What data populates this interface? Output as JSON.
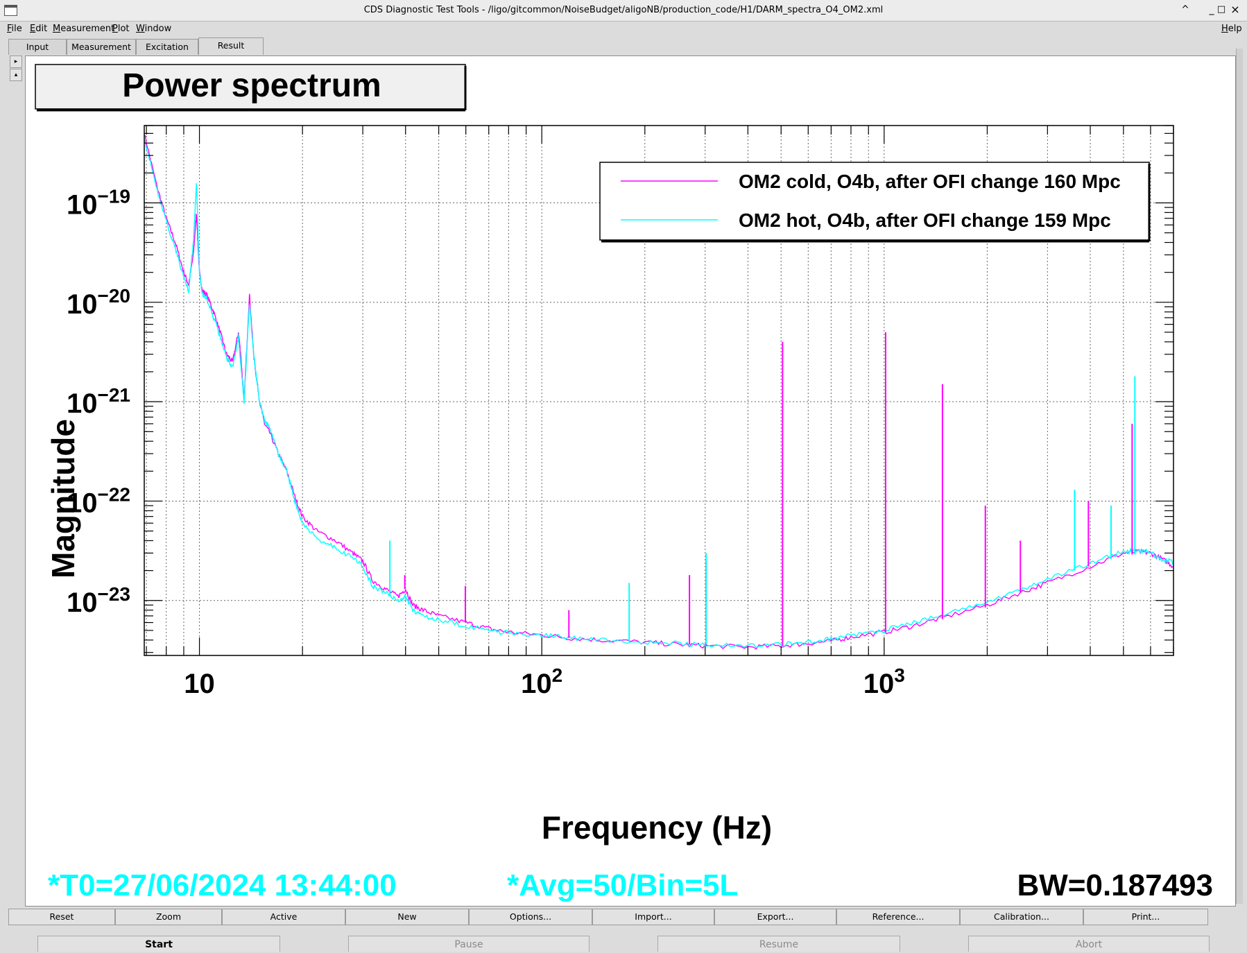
{
  "window": {
    "title": "CDS Diagnostic Test Tools - /ligo/gitcommon/NoiseBudget/aligoNB/production_code/H1/DARM_spectra_O4_OM2.xml",
    "controls": [
      "^",
      "_",
      "□",
      "×"
    ]
  },
  "menu": {
    "file": "File",
    "edit": "Edit",
    "measurement": "Measurement",
    "plot": "Plot",
    "window": "Window",
    "help": "Help"
  },
  "tabs": [
    "Input",
    "Measurement",
    "Excitation",
    "Result"
  ],
  "active_tab": "Result",
  "side_controls": [
    "▸",
    "▴"
  ],
  "plot": {
    "title": "Power spectrum",
    "footer_left": "*T0=27/06/2024 13:44:00",
    "footer_mid": "*Avg=50/Bin=5L",
    "footer_right": "BW=0.187493",
    "footer_color": "#00ffff"
  },
  "chart_data": {
    "type": "line",
    "xlabel": "Frequency (Hz)",
    "ylabel": "Magnitude",
    "xscale": "log",
    "yscale": "log",
    "xlim": [
      6.9,
      7000
    ],
    "ylim": [
      2.8e-24,
      6e-19
    ],
    "grid": true,
    "legend_position": "top-right",
    "x_ticks": [
      {
        "base": "10",
        "exp": ""
      },
      {
        "base": "10",
        "exp": "2"
      },
      {
        "base": "10",
        "exp": "3"
      }
    ],
    "y_ticks": [
      {
        "base": "10",
        "exp": "−19"
      },
      {
        "base": "10",
        "exp": "−20"
      },
      {
        "base": "10",
        "exp": "−21"
      },
      {
        "base": "10",
        "exp": "−22"
      },
      {
        "base": "10",
        "exp": "−23"
      }
    ],
    "x_tick_values": [
      10,
      100,
      1000
    ],
    "y_tick_values": [
      1e-19,
      1e-20,
      1e-21,
      1e-22,
      1e-23
    ],
    "series": [
      {
        "name": "OM2 cold, O4b, after OFI change 160 Mpc",
        "color": "#ff00ff",
        "x": [
          6.9,
          7.5,
          8,
          8.5,
          9,
          9.3,
          9.6,
          9.8,
          10,
          10.2,
          10.5,
          11,
          11.5,
          12,
          12.5,
          13,
          13.2,
          13.5,
          14,
          14.4,
          14.6,
          15,
          15.5,
          16,
          17,
          18,
          19,
          20,
          22,
          25,
          28,
          30,
          32,
          35,
          38,
          40,
          42,
          45,
          50,
          60,
          70,
          80,
          100,
          120,
          150,
          200,
          250,
          300,
          400,
          500,
          600,
          700,
          800,
          1000,
          1200,
          1500,
          2000,
          2500,
          3000,
          4000,
          5000,
          5600,
          6000,
          6500,
          7000
        ],
        "y": [
          5e-19,
          1.5e-19,
          7e-20,
          4e-20,
          2e-20,
          1.5e-20,
          3e-20,
          8e-20,
          2e-20,
          1.3e-20,
          1.2e-20,
          8e-21,
          5e-21,
          3e-21,
          2.5e-21,
          5e-21,
          3e-21,
          1e-21,
          1.2e-20,
          3e-21,
          2e-21,
          1e-21,
          6e-22,
          5e-22,
          3e-22,
          2e-22,
          1.1e-22,
          7e-23,
          5e-23,
          4e-23,
          3e-23,
          2.5e-23,
          1.6e-23,
          1.3e-23,
          1.1e-23,
          1.3e-23,
          9e-24,
          8e-24,
          7e-24,
          6e-24,
          5.2e-24,
          4.8e-24,
          4.5e-24,
          4.2e-24,
          4e-24,
          3.8e-24,
          3.6e-24,
          3.5e-24,
          3.4e-24,
          3.5e-24,
          3.7e-24,
          3.9e-24,
          4.3e-24,
          4.8e-24,
          5.5e-24,
          6.8e-24,
          9e-24,
          1.2e-23,
          1.5e-23,
          2.2e-23,
          3e-23,
          3.1e-23,
          3e-23,
          2.6e-23,
          2.2e-23
        ]
      },
      {
        "name": "OM2 hot, O4b, after OFI change 159 Mpc",
        "color": "#00ffff",
        "x": [
          6.9,
          7.5,
          8,
          8.5,
          9,
          9.3,
          9.6,
          9.8,
          10,
          10.2,
          10.5,
          11,
          11.5,
          12,
          12.5,
          13,
          13.2,
          13.5,
          14,
          14.4,
          14.6,
          15,
          15.5,
          16,
          17,
          18,
          19,
          20,
          22,
          25,
          28,
          30,
          32,
          35,
          38,
          40,
          42,
          45,
          50,
          60,
          70,
          80,
          100,
          120,
          150,
          200,
          250,
          300,
          400,
          500,
          600,
          700,
          800,
          1000,
          1200,
          1500,
          2000,
          2500,
          3000,
          4000,
          5000,
          5600,
          6000,
          6500,
          7000
        ],
        "y": [
          4.5e-19,
          1.4e-19,
          6.5e-20,
          3.5e-20,
          1.8e-20,
          1.3e-20,
          4e-20,
          1.6e-19,
          2e-20,
          1.2e-20,
          1.1e-20,
          7e-21,
          4.5e-21,
          2.8e-21,
          2.2e-21,
          4.5e-21,
          2.5e-21,
          1e-21,
          1e-20,
          3e-21,
          2e-21,
          1e-21,
          6.5e-22,
          5.5e-22,
          3e-22,
          2e-22,
          1e-22,
          6e-23,
          4.2e-23,
          3.4e-23,
          2.7e-23,
          2.2e-23,
          1.4e-23,
          1.2e-23,
          1e-23,
          1.1e-23,
          8e-24,
          7e-24,
          6.5e-24,
          5.5e-24,
          5e-24,
          4.7e-24,
          4.5e-24,
          4.2e-24,
          4e-24,
          3.8e-24,
          3.7e-24,
          3.6e-24,
          3.5e-24,
          3.6e-24,
          3.8e-24,
          4.1e-24,
          4.5e-24,
          5e-24,
          5.9e-24,
          7.2e-24,
          9.5e-24,
          1.3e-23,
          1.6e-23,
          2.4e-23,
          3.1e-23,
          3.2e-23,
          3e-23,
          2.6e-23,
          2.4e-23
        ]
      }
    ],
    "peaks": [
      {
        "x": 39.8,
        "y": [
          1.3e-23,
          1.8e-23
        ],
        "color": "#ff00ff"
      },
      {
        "x": 59.8,
        "y": [
          6e-24,
          1.4e-23
        ],
        "color": "#ff00ff"
      },
      {
        "x": 120,
        "y": [
          4.2e-24,
          8e-24
        ],
        "color": "#ff00ff"
      },
      {
        "x": 270,
        "y": [
          3.6e-24,
          1.8e-23
        ],
        "color": "#ff00ff"
      },
      {
        "x": 302,
        "y": [
          3.5e-24,
          2.5e-23
        ],
        "color": "#ff00ff"
      },
      {
        "x": 505,
        "y": [
          3.5e-24,
          4e-21
        ],
        "color": "#ff00ff"
      },
      {
        "x": 1010,
        "y": [
          4.8e-24,
          5e-21
        ],
        "color": "#ff00ff"
      },
      {
        "x": 1480,
        "y": [
          6.5e-24,
          1.5e-21
        ],
        "color": "#ff00ff"
      },
      {
        "x": 1975,
        "y": [
          8.5e-24,
          9e-23
        ],
        "color": "#ff00ff"
      },
      {
        "x": 2500,
        "y": [
          1.2e-23,
          4e-23
        ],
        "color": "#ff00ff"
      },
      {
        "x": 3950,
        "y": [
          2.2e-23,
          1e-22
        ],
        "color": "#ff00ff"
      },
      {
        "x": 5300,
        "y": [
          2.9e-23,
          6e-22
        ],
        "color": "#ff00ff"
      },
      {
        "x": 36,
        "y": [
          1.1e-23,
          4e-23
        ],
        "color": "#00ffff"
      },
      {
        "x": 180,
        "y": [
          3.9e-24,
          1.5e-23
        ],
        "color": "#00ffff"
      },
      {
        "x": 302,
        "y": [
          3.6e-24,
          3e-23
        ],
        "color": "#00ffff"
      },
      {
        "x": 3600,
        "y": [
          2e-23,
          1.3e-22
        ],
        "color": "#00ffff"
      },
      {
        "x": 4600,
        "y": [
          2.6e-23,
          9e-23
        ],
        "color": "#00ffff"
      },
      {
        "x": 5400,
        "y": [
          2.9e-23,
          1.8e-21
        ],
        "color": "#00ffff"
      }
    ]
  },
  "toolbar": [
    "Reset",
    "Zoom",
    "Active",
    "New",
    "Options...",
    "Import...",
    "Export...",
    "Reference...",
    "Calibration...",
    "Print..."
  ],
  "controls": {
    "start": "Start",
    "pause": "Pause",
    "resume": "Resume",
    "abort": "Abort"
  }
}
